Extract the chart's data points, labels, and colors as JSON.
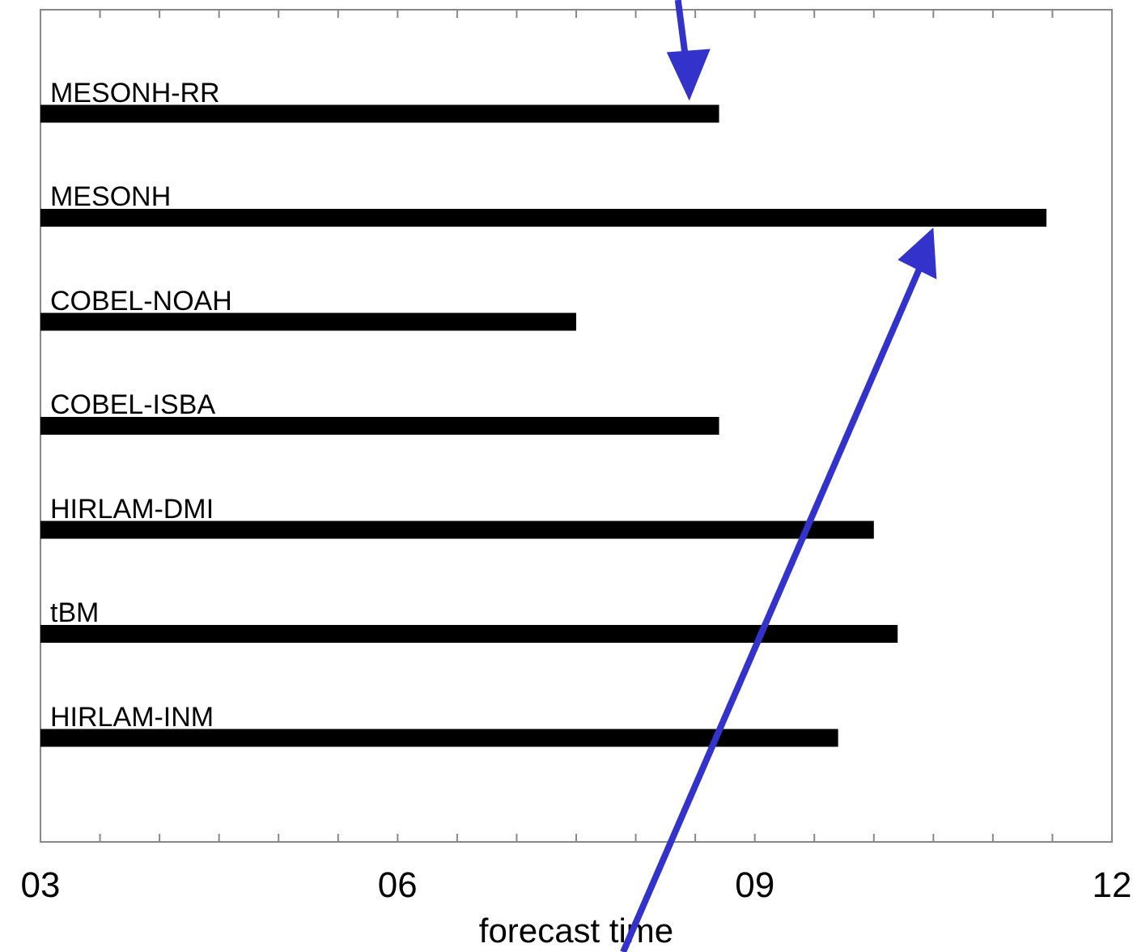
{
  "chart_data": {
    "type": "bar",
    "orientation": "horizontal",
    "xlabel": "forecast time",
    "categories": [
      "MESONH-RR",
      "MESONH",
      "COBEL-NOAH",
      "COBEL-ISBA",
      "HIRLAM-DMI",
      "tBM",
      "HIRLAM-INM"
    ],
    "values": [
      8.7,
      11.45,
      7.5,
      8.7,
      10.0,
      10.2,
      9.7
    ],
    "color": "#000000",
    "xlim": [
      3,
      12
    ],
    "xticks": [
      {
        "value": 3,
        "label": "03"
      },
      {
        "value": 3.5,
        "label": null
      },
      {
        "value": 4,
        "label": null
      },
      {
        "value": 4.5,
        "label": null
      },
      {
        "value": 5,
        "label": null
      },
      {
        "value": 5.5,
        "label": null
      },
      {
        "value": 6,
        "label": "06"
      },
      {
        "value": 6.5,
        "label": null
      },
      {
        "value": 7,
        "label": null
      },
      {
        "value": 7.5,
        "label": null
      },
      {
        "value": 8,
        "label": null
      },
      {
        "value": 8.5,
        "label": null
      },
      {
        "value": 9,
        "label": "09"
      },
      {
        "value": 9.5,
        "label": null
      },
      {
        "value": 10,
        "label": null
      },
      {
        "value": 10.5,
        "label": null
      },
      {
        "value": 11,
        "label": null
      },
      {
        "value": 11.5,
        "label": null
      },
      {
        "value": 12,
        "label": "12"
      }
    ],
    "grid": false
  }
}
